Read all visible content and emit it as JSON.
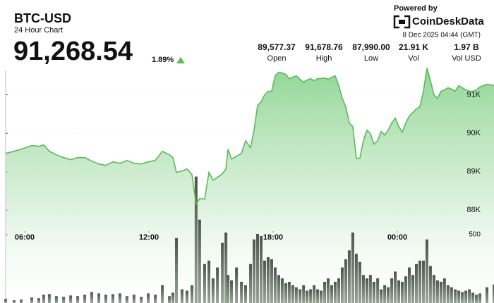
{
  "header": {
    "symbol": "BTC-USD",
    "subtitle": "24 Hour Chart",
    "price": "91,268.54",
    "change": "1.89%",
    "powered_by": "Powered by",
    "brand": "CoinDeskData",
    "timestamp": "8 Dec 2025 04:44 (GMT)",
    "stats": [
      {
        "value": "89,577.37",
        "label": "Open"
      },
      {
        "value": "91,678.76",
        "label": "High"
      },
      {
        "value": "87,990.00",
        "label": "Low"
      },
      {
        "value": "21.91 K",
        "label": "Vol"
      },
      {
        "value": "1.97 B",
        "label": "Vol USD"
      }
    ]
  },
  "chart_data": {
    "type": "line",
    "x": [
      5.08,
      5.49,
      5.83,
      6.34,
      6.68,
      6.92,
      7.19,
      7.53,
      7.88,
      8.22,
      8.56,
      8.9,
      9.24,
      9.58,
      9.92,
      10.26,
      10.6,
      10.94,
      11.28,
      11.63,
      11.97,
      12.31,
      12.65,
      12.99,
      13.16,
      13.33,
      13.6,
      13.84,
      14.08,
      14.28,
      14.45,
      14.69,
      14.9,
      15.1,
      15.31,
      15.55,
      15.72,
      15.82,
      15.99,
      16.23,
      16.47,
      16.67,
      16.91,
      17.08,
      17.25,
      17.42,
      17.59,
      17.76,
      17.93,
      18.1,
      18.27,
      18.44,
      18.61,
      18.78,
      18.95,
      19.12,
      19.3,
      19.47,
      19.64,
      19.81,
      19.98,
      20.15,
      20.32,
      20.49,
      20.66,
      20.83,
      21.0,
      21.17,
      21.34,
      21.51,
      21.68,
      21.85,
      22.02,
      22.19,
      22.36,
      22.53,
      22.7,
      22.87,
      23.05,
      23.22,
      23.39,
      23.56,
      23.73,
      23.9,
      24.07,
      24.24,
      24.41,
      24.58,
      24.75,
      24.92,
      25.09,
      25.26,
      25.43,
      25.6,
      25.77,
      25.94,
      26.11,
      26.28,
      26.45,
      26.62,
      26.8,
      26.97,
      27.14,
      27.31,
      27.48,
      27.65,
      27.82,
      27.99,
      28.33,
      28.67
    ],
    "xlim": [
      5.08,
      28.67
    ],
    "xticks": [
      {
        "value": 6,
        "label": "06:00"
      },
      {
        "value": 12,
        "label": "12:00"
      },
      {
        "value": 18,
        "label": "18:00"
      },
      {
        "value": 24,
        "label": "00:00"
      }
    ],
    "ylim": [
      87400,
      92000
    ],
    "yticks": [
      {
        "value": 88000,
        "label": "88K"
      },
      {
        "value": 89000,
        "label": "89K"
      },
      {
        "value": 90000,
        "label": "90K"
      },
      {
        "value": 91000,
        "label": "91K"
      }
    ],
    "y2lim": [
      0,
      1000
    ],
    "y2ticks": [
      500
    ],
    "grid": true,
    "series": [
      {
        "type": "area",
        "color": "#5cb85f",
        "values": [
          89477,
          89532,
          89587,
          89679,
          89660,
          89697,
          89532,
          89440,
          89367,
          89312,
          89367,
          89367,
          89275,
          89202,
          89165,
          89257,
          89220,
          89293,
          89220,
          89202,
          89257,
          89293,
          89532,
          89440,
          89367,
          88981,
          89018,
          89073,
          88926,
          88156,
          88303,
          88284,
          88981,
          88780,
          88853,
          88945,
          89073,
          89587,
          89330,
          89404,
          89477,
          89807,
          89624,
          90082,
          90725,
          90816,
          91000,
          91092,
          91092,
          91495,
          91587,
          91569,
          91532,
          91422,
          91459,
          91495,
          91404,
          91330,
          91385,
          91422,
          91367,
          91422,
          91422,
          91440,
          91404,
          91459,
          91495,
          91239,
          90908,
          90688,
          90266,
          90174,
          89349,
          89349,
          89807,
          90082,
          89991,
          89716,
          89807,
          90046,
          89954,
          90082,
          90266,
          90394,
          90174,
          90028,
          90266,
          90450,
          90541,
          90633,
          90688,
          91092,
          91697,
          91367,
          91000,
          90908,
          91092,
          91128,
          91184,
          91147,
          91092,
          91239,
          91184,
          91128,
          91092,
          91092,
          91128,
          91202,
          91275,
          91239
        ]
      },
      {
        "type": "bar",
        "axis": "y2",
        "color": "#4b554b",
        "values": [
          30,
          20,
          25,
          40,
          35,
          60,
          65,
          50,
          45,
          55,
          50,
          60,
          80,
          70,
          60,
          65,
          70,
          50,
          60,
          45,
          70,
          60,
          130,
          50,
          75,
          475,
          100,
          90,
          130,
          925,
          610,
          285,
          310,
          180,
          260,
          440,
          515,
          205,
          165,
          260,
          155,
          130,
          285,
          465,
          505,
          490,
          310,
          335,
          320,
          260,
          205,
          180,
          145,
          155,
          130,
          115,
          100,
          130,
          90,
          100,
          130,
          100,
          90,
          155,
          180,
          130,
          155,
          180,
          260,
          320,
          385,
          515,
          360,
          300,
          205,
          180,
          205,
          155,
          180,
          100,
          130,
          115,
          180,
          230,
          165,
          155,
          195,
          260,
          205,
          285,
          310,
          310,
          465,
          270,
          205,
          165,
          155,
          180,
          130,
          115,
          100,
          90,
          80,
          90,
          100,
          75,
          60,
          70,
          115,
          135
        ]
      }
    ]
  }
}
